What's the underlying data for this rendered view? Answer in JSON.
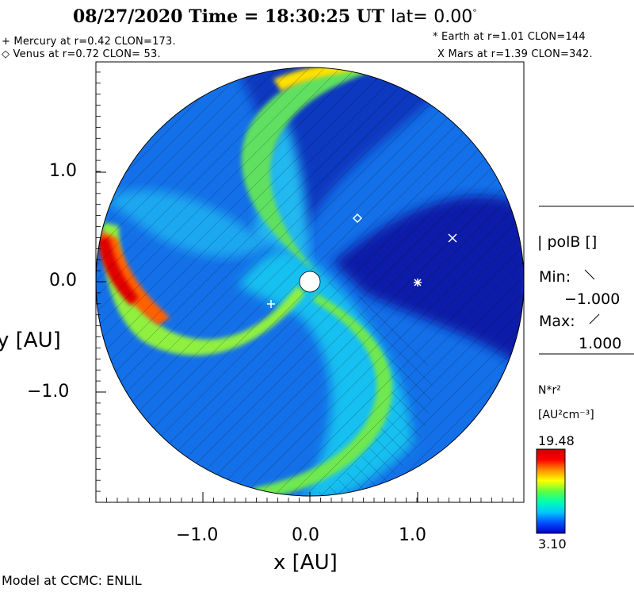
{
  "header": {
    "date": "08/27/2020",
    "time_label": "Time =",
    "time": "18:30:25 UT",
    "lat_label": "lat=",
    "lat_value": "0.00",
    "lat_unit": "°"
  },
  "planets": {
    "mercury": "+ Mercury at r=0.42 CLON=173.",
    "venus": "◇ Venus at r=0.72 CLON= 53.",
    "earth": "* Earth at   r=1.01 CLON=144",
    "mars": "X Mars at r=1.39 CLON=342."
  },
  "axes": {
    "x_label": "x [AU]",
    "y_label": "y [AU]",
    "x_ticks": [
      "−1.0",
      "0.0",
      "1.0"
    ],
    "y_ticks": [
      "1.0",
      "0.0",
      "−1.0"
    ]
  },
  "polarity_panel": {
    "title": "| polB []",
    "min_label": "Min:",
    "min_value": "−1.000",
    "max_label": "Max:",
    "max_value": "1.000"
  },
  "colorbar": {
    "label": "N*r²",
    "unit": "[AU²cm⁻³]",
    "max": "19.48",
    "min": "3.10",
    "colors": [
      "#0000c8",
      "#0050ff",
      "#00c8ff",
      "#00ffb0",
      "#60ff40",
      "#ffff00",
      "#ff9000",
      "#ff0000",
      "#d00000"
    ]
  },
  "footer": {
    "credit": "Model at CCMC: ENLIL"
  }
}
